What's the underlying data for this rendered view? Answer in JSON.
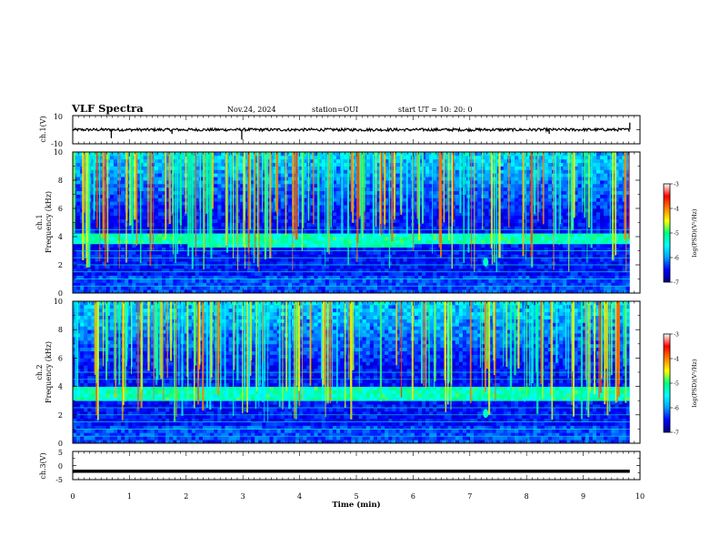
{
  "header": {
    "title": "VLF Spectra",
    "date": "Nov.24, 2024",
    "station": "station=OUI",
    "start": "start  UT =   10: 20: 0"
  },
  "chart_data": [
    {
      "type": "line",
      "panel": "ch1-waveform",
      "ylabel": "ch.1(V)",
      "ylim": [
        -10,
        10
      ],
      "ytick_labels": [
        "10",
        "-10"
      ],
      "xlim": [
        0,
        10
      ],
      "baseline_value": 0,
      "noise_amplitude": 1,
      "impulses": [
        {
          "x": 0.68,
          "y": -6
        },
        {
          "x": 1.75,
          "y": -3
        },
        {
          "x": 2.98,
          "y": -7
        },
        {
          "x": 8.4,
          "y": -3
        },
        {
          "x": 9.82,
          "y": 5
        }
      ]
    },
    {
      "type": "heatmap",
      "panel": "ch1-spectrogram",
      "ylabel": "ch.1\nFrequency (kHz)",
      "ylabel_line1": "ch.1",
      "ylabel_line2": "Frequency (kHz)",
      "ylim": [
        0,
        10
      ],
      "ytick_labels": [
        "10",
        "8",
        "6",
        "4",
        "2",
        "0"
      ],
      "xlim": [
        0,
        10
      ],
      "data_end_min": 9.82,
      "features": {
        "hiss_band_khz": [
          3.4,
          4.3
        ],
        "spot": {
          "x_min": 7.28,
          "y_khz": 2.2
        },
        "harmonic_lines_khz": [
          0.5,
          1.0,
          1.5,
          2.0,
          2.5,
          3.0,
          3.5,
          4.5
        ]
      }
    },
    {
      "type": "heatmap",
      "panel": "ch2-spectrogram",
      "ylabel": "ch.2\nFrequency (kHz)",
      "ylabel_line1": "ch.2",
      "ylabel_line2": "Frequency (kHz)",
      "ylim": [
        0,
        10
      ],
      "ytick_labels": [
        "10",
        "8",
        "6",
        "4",
        "2",
        "0"
      ],
      "xlim": [
        0,
        10
      ],
      "data_end_min": 9.82,
      "features": {
        "hiss_band_khz": [
          3.1,
          4.1
        ],
        "spot": {
          "x_min": 7.28,
          "y_khz": 2.1
        },
        "harmonic_lines_khz": [
          0.5,
          1.0,
          1.5,
          2.0,
          2.5,
          3.0,
          4.5,
          5.0
        ]
      }
    },
    {
      "type": "line",
      "panel": "ch3-waveform",
      "ylabel": "ch.3(V)",
      "ylim": [
        -5,
        5
      ],
      "ytick_labels": [
        "5",
        "0",
        "-5"
      ],
      "xlim": [
        0,
        9.82
      ],
      "constant_value": -2
    },
    {
      "type": "axis",
      "xlabel": "Time  (min)",
      "xlim": [
        0,
        10
      ],
      "xtick_labels": [
        "0",
        "1",
        "2",
        "3",
        "4",
        "5",
        "6",
        "7",
        "8",
        "9",
        "10"
      ]
    }
  ],
  "colorbars": [
    {
      "label": "log(PSD)(V²/Hz)",
      "range": [
        -7,
        -3
      ],
      "tick_labels": [
        "-3",
        "-4",
        "-5",
        "-6",
        "-7"
      ]
    },
    {
      "label": "log(PSD)(V²/Hz)",
      "range": [
        -7,
        -3
      ],
      "tick_labels": [
        "-3",
        "-4",
        "-5",
        "-6",
        "-7"
      ]
    }
  ],
  "colors": {
    "colormap": [
      "#000080",
      "#0000ff",
      "#00a0ff",
      "#00ffff",
      "#00ff80",
      "#ffff00",
      "#ff8000",
      "#ff0000",
      "#ffffff"
    ],
    "trace": "#000000",
    "background": "#ffffff"
  }
}
